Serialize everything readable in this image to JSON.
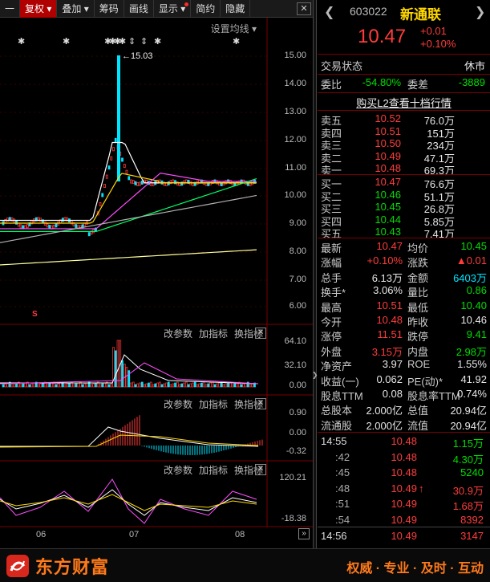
{
  "toolbar": {
    "items": [
      "一",
      "复权",
      "叠加",
      "筹码",
      "画线",
      "显示",
      "简约",
      "隐藏"
    ],
    "close": "✕"
  },
  "chart": {
    "setting_label": "设置均线",
    "max_label": "15.03",
    "price_axis": [
      "15.00",
      "14.00",
      "13.00",
      "12.00",
      "11.00",
      "10.00",
      "9.00",
      "8.00",
      "7.00",
      "6.00"
    ],
    "volume_axis": [
      "64.10",
      "32.10",
      "0.00"
    ],
    "macd_axis": [
      "0.90",
      "0.00",
      "-0.32"
    ],
    "kdj_axis": [
      "120.21",
      "-18.38"
    ],
    "x_labels": [
      "06",
      "07",
      "08"
    ],
    "panel_links": {
      "change": "改参数",
      "add": "加指标",
      "switch": "换指标"
    },
    "marker_s": "S",
    "nav_arrow": "»",
    "colors": {
      "up": "#ff3b3b",
      "down": "#00e5ff",
      "ma5": "#ffffff",
      "ma10": "#ffd700",
      "ma20": "#ff4dff",
      "ma30": "#00ff66",
      "ma60": "#b0b0b0"
    }
  },
  "quote": {
    "code": "603022",
    "name": "新通联",
    "price": "10.47",
    "change": "+0.01",
    "change_pct": "+0.10%",
    "status_label": "交易状态",
    "status_value": "休市",
    "wb_label": "委比",
    "wb_value": "-54.80%",
    "wc_label": "委差",
    "wc_value": "-3889",
    "l2_link": "购买L2查看十档行情",
    "asks": [
      {
        "label": "卖五",
        "price": "10.52",
        "vol": "76.0万"
      },
      {
        "label": "卖四",
        "price": "10.51",
        "vol": "151万"
      },
      {
        "label": "卖三",
        "price": "10.50",
        "vol": "234万"
      },
      {
        "label": "卖二",
        "price": "10.49",
        "vol": "47.1万"
      },
      {
        "label": "卖一",
        "price": "10.48",
        "vol": "69.3万"
      }
    ],
    "bids": [
      {
        "label": "买一",
        "price": "10.47",
        "vol": "76.6万"
      },
      {
        "label": "买二",
        "price": "10.46",
        "vol": "51.1万"
      },
      {
        "label": "买三",
        "price": "10.45",
        "vol": "26.8万"
      },
      {
        "label": "买四",
        "price": "10.44",
        "vol": "5.85万"
      },
      {
        "label": "买五",
        "price": "10.43",
        "vol": "7.41万"
      }
    ],
    "stats": [
      {
        "l1": "最新",
        "v1": "10.47",
        "c1": "red",
        "l2": "均价",
        "v2": "10.45",
        "c2": "green"
      },
      {
        "l1": "涨幅",
        "v1": "+0.10%",
        "c1": "red",
        "l2": "涨跌",
        "v2": "▲0.01",
        "c2": "red"
      },
      {
        "l1": "总手",
        "v1": "6.13万",
        "c1": "white",
        "l2": "金额",
        "v2": "6403万",
        "c2": "cyan"
      },
      {
        "l1": "换手*",
        "v1": "3.06%",
        "c1": "white",
        "l2": "量比",
        "v2": "0.86",
        "c2": "green"
      },
      {
        "l1": "最高",
        "v1": "10.51",
        "c1": "red",
        "l2": "最低",
        "v2": "10.40",
        "c2": "green"
      },
      {
        "l1": "今开",
        "v1": "10.48",
        "c1": "red",
        "l2": "昨收",
        "v2": "10.46",
        "c2": "white"
      },
      {
        "l1": "涨停",
        "v1": "11.51",
        "c1": "red",
        "l2": "跌停",
        "v2": "9.41",
        "c2": "green"
      },
      {
        "l1": "外盘",
        "v1": "3.15万",
        "c1": "red",
        "l2": "内盘",
        "v2": "2.98万",
        "c2": "green"
      },
      {
        "l1": "净资产",
        "v1": "3.97",
        "c1": "white",
        "l2": "ROE",
        "v2": "1.55%",
        "c2": "white"
      },
      {
        "l1": "收益(一)",
        "v1": "0.062",
        "c1": "white",
        "l2": "PE(动)*",
        "v2": "41.92",
        "c2": "white"
      },
      {
        "l1": "股息TTM",
        "v1": "0.08",
        "c1": "white",
        "l2": "股息率TTM",
        "v2": "0.74%",
        "c2": "white"
      },
      {
        "l1": "总股本",
        "v1": "2.000亿",
        "c1": "white",
        "l2": "总值",
        "v2": "20.94亿",
        "c2": "white"
      },
      {
        "l1": "流通股",
        "v1": "2.000亿",
        "c1": "white",
        "l2": "流值",
        "v2": "20.94亿",
        "c2": "white"
      }
    ],
    "ticks": [
      {
        "time": "14:55",
        "price": "10.48",
        "vol": "1.15万",
        "vc": "green",
        "arrow": ""
      },
      {
        "time": ":42",
        "price": "10.48",
        "vol": "4.30万",
        "vc": "green",
        "arrow": ""
      },
      {
        "time": ":45",
        "price": "10.48",
        "vol": "5240",
        "vc": "green",
        "arrow": ""
      },
      {
        "time": ":48",
        "price": "10.49",
        "vol": "30.9万",
        "vc": "red",
        "arrow": "↑"
      },
      {
        "time": ":51",
        "price": "10.49",
        "vol": "1.68万",
        "vc": "red",
        "arrow": ""
      },
      {
        "time": ":54",
        "price": "10.49",
        "vol": "8392",
        "vc": "red",
        "arrow": ""
      },
      {
        "time": "14:56",
        "price": "10.49",
        "vol": "3147",
        "vc": "red",
        "arrow": ""
      }
    ]
  },
  "footer": {
    "brand": "东方财富",
    "slogan": "权威 · 专业 · 及时 · 互动"
  }
}
